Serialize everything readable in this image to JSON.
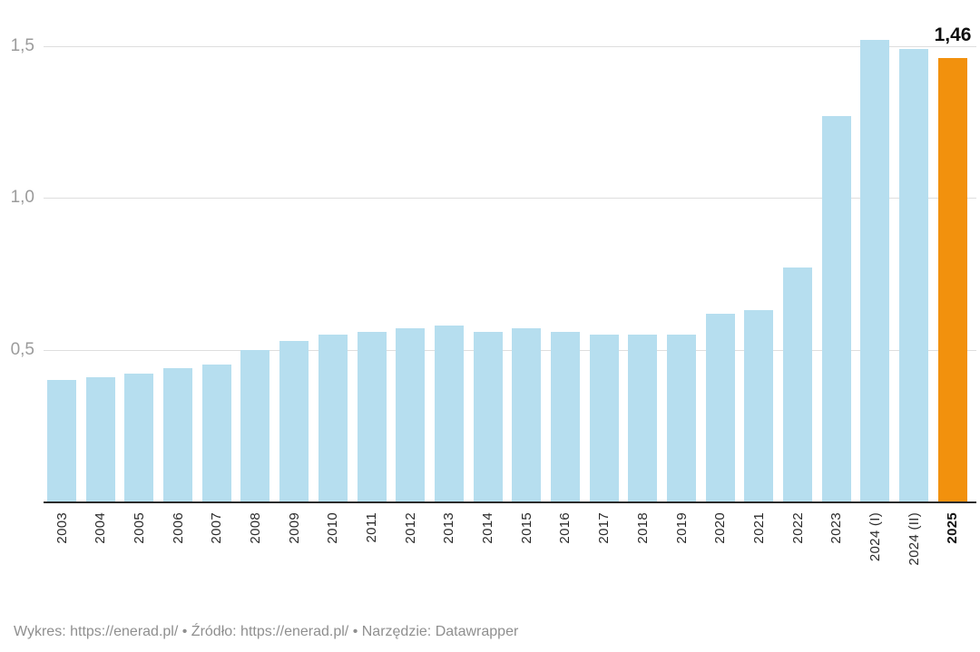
{
  "chart_data": {
    "type": "bar",
    "categories": [
      "2003",
      "2004",
      "2005",
      "2006",
      "2007",
      "2008",
      "2009",
      "2010",
      "2011",
      "2012",
      "2013",
      "2014",
      "2015",
      "2016",
      "2017",
      "2018",
      "2019",
      "2020",
      "2021",
      "2022",
      "2023",
      "2024 (I)",
      "2024 (II)",
      "2025"
    ],
    "values": [
      0.4,
      0.41,
      0.42,
      0.44,
      0.45,
      0.5,
      0.53,
      0.55,
      0.56,
      0.57,
      0.58,
      0.56,
      0.57,
      0.56,
      0.55,
      0.55,
      0.55,
      0.62,
      0.63,
      0.77,
      1.27,
      1.52,
      1.49,
      1.46
    ],
    "title": "",
    "xlabel": "",
    "ylabel": "",
    "ylim": [
      0,
      1.53
    ],
    "grid": true,
    "legend": "none",
    "y_ticks": [
      {
        "value": 0.5,
        "label": "0,5"
      },
      {
        "value": 1.0,
        "label": "1,0"
      },
      {
        "value": 1.5,
        "label": "1,5"
      }
    ],
    "highlight_index": 23,
    "highlight_value_label": "1,46",
    "colors": {
      "bar_default": "#B6DEEF",
      "bar_highlight": "#F2910D",
      "gridline": "#dedede",
      "axis_line": "#2b2b2b",
      "y_tick_text": "#9b9b9b",
      "x_tick_text": "#2a2a2a",
      "value_label_text": "#0f0f0f",
      "footer_text": "#8f8f8f"
    }
  },
  "footer": {
    "chart_label": "Wykres:",
    "chart_link": "https://enerad.pl/",
    "separator1": "•",
    "source_label": "Źródło:",
    "source_link": "https://enerad.pl/",
    "separator2": "•",
    "tool_label": "Narzędzie:",
    "tool_link": "Datawrapper"
  }
}
